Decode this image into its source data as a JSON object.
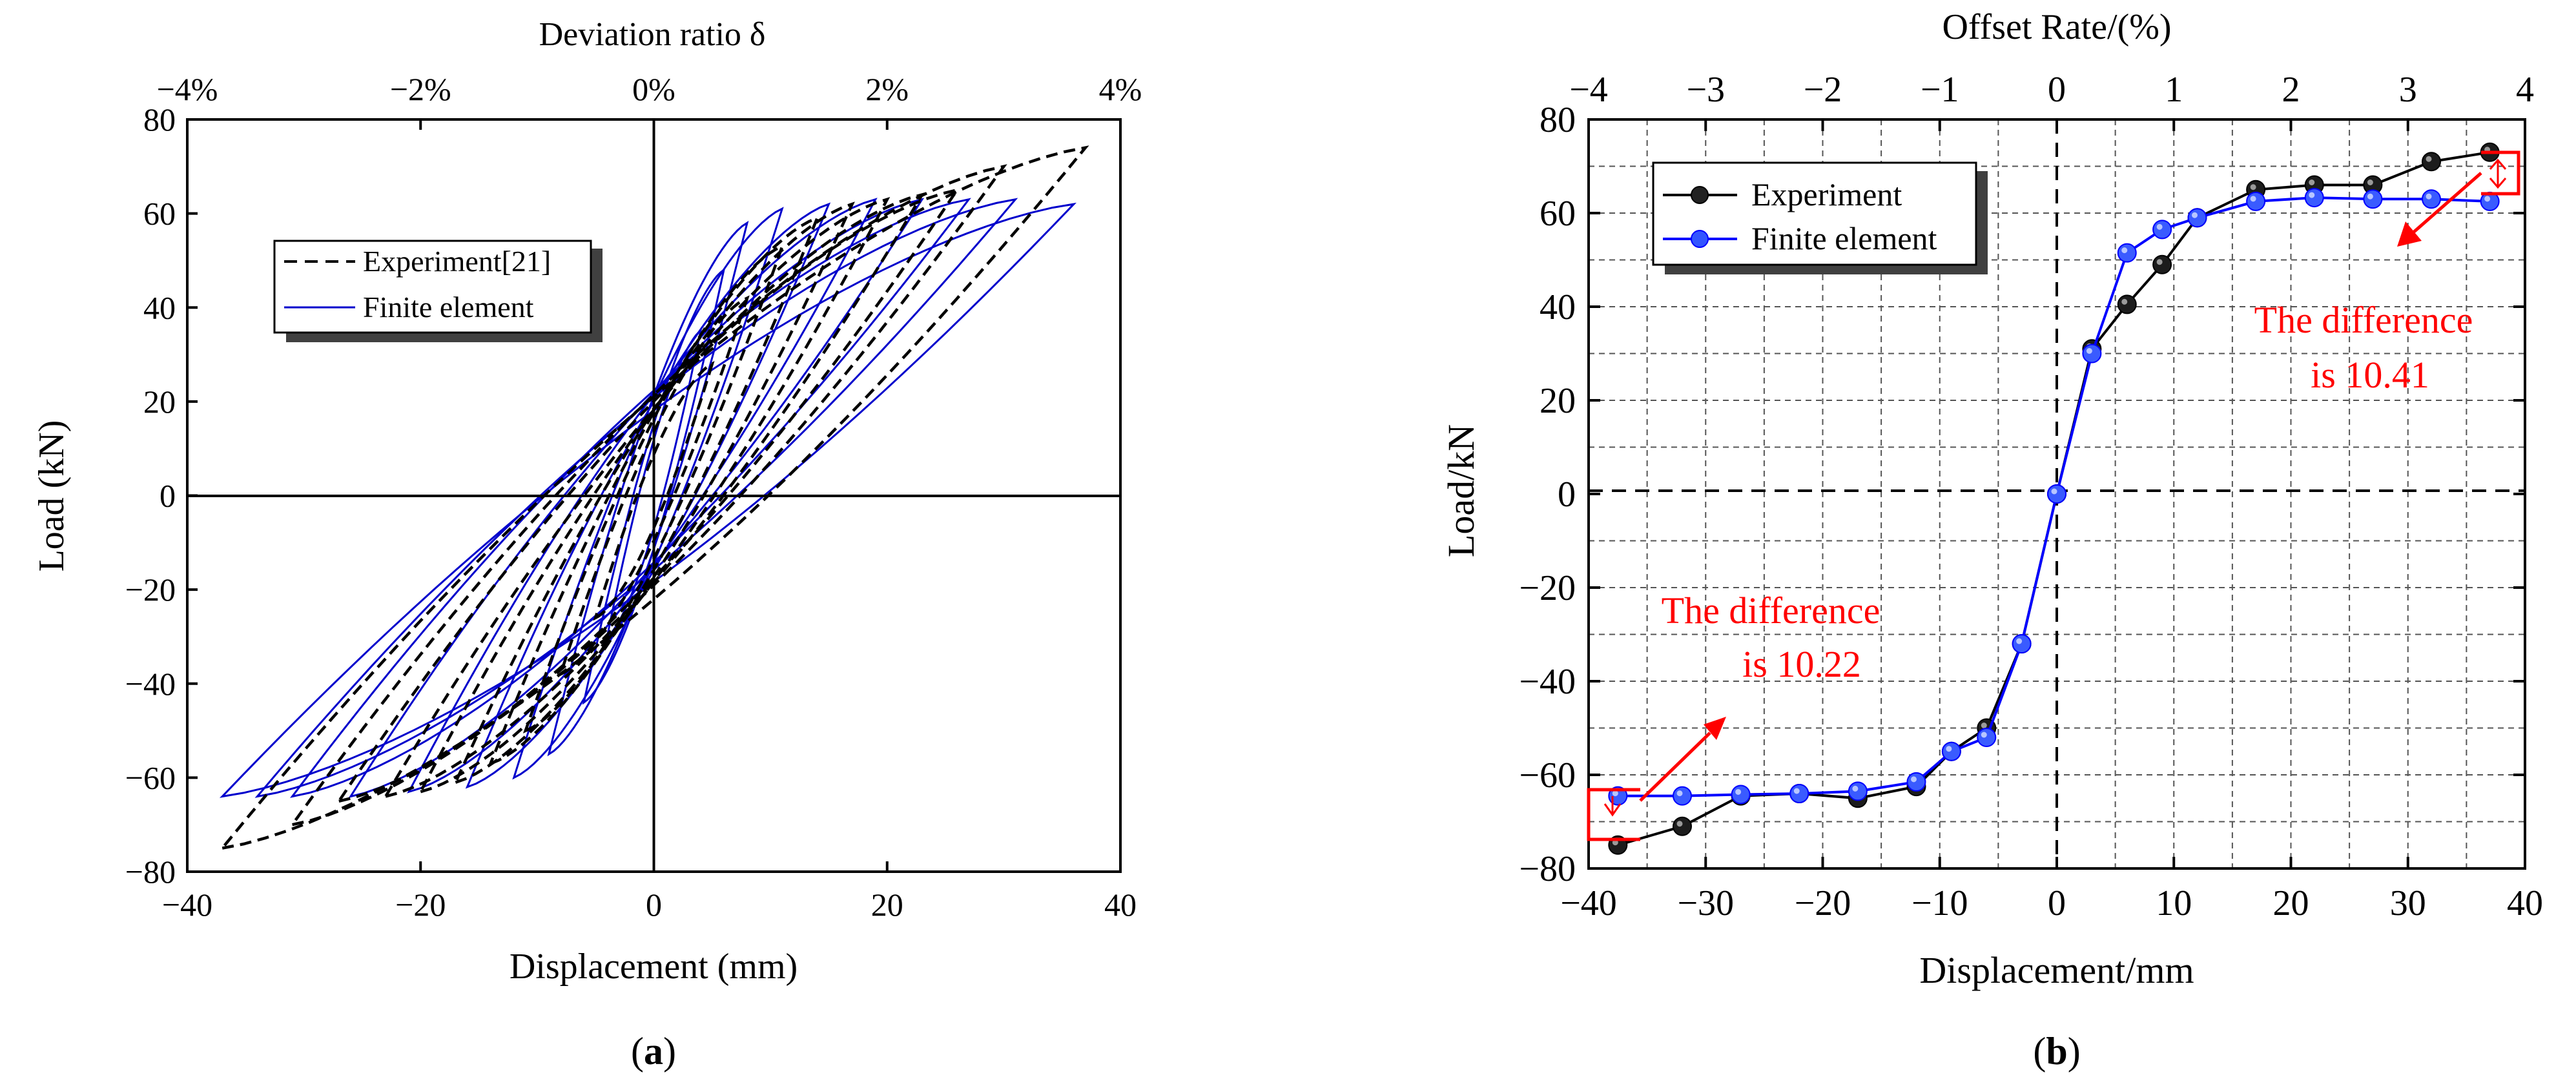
{
  "chart_data": [
    {
      "panel_label": "a",
      "type": "line",
      "title": "",
      "xlabel": "Displacement (mm)",
      "ylabel": "Load (kN)",
      "top_xlabel": "Deviation ratio δ",
      "xlim": [
        -40,
        40
      ],
      "ylim": [
        -80,
        80
      ],
      "xticks": [
        "−40",
        "−20",
        "0",
        "20",
        "40"
      ],
      "xtick_values": [
        -40,
        -20,
        0,
        20,
        40
      ],
      "yticks": [
        "−80",
        "−60",
        "−40",
        "−20",
        "0",
        "20",
        "40",
        "60",
        "80"
      ],
      "ytick_values": [
        -80,
        -60,
        -40,
        -20,
        0,
        20,
        40,
        60,
        80
      ],
      "top_xticks": [
        "−4%",
        "−2%",
        "0%",
        "2%",
        "4%"
      ],
      "grid": false,
      "legend": [
        {
          "label": "Experiment[21]",
          "style": "dashed",
          "color": "#000000"
        },
        {
          "label": "Finite element",
          "style": "solid",
          "color": "#0000cc"
        }
      ],
      "legend_position": "upper-left",
      "series": [
        {
          "name": "Experiment[21]",
          "color": "#000000",
          "loops": [
            {
              "dmax": 5,
              "pmax": 28,
              "dmin": -5,
              "pmin": -26
            },
            {
              "dmax": 8,
              "pmax": 42,
              "dmin": -8,
              "pmin": -38
            },
            {
              "dmax": 11,
              "pmax": 53,
              "dmin": -11,
              "pmin": -50
            },
            {
              "dmax": 14,
              "pmax": 59,
              "dmin": -14,
              "pmin": -57
            },
            {
              "dmax": 17,
              "pmax": 62,
              "dmin": -17,
              "pmin": -61
            },
            {
              "dmax": 20,
              "pmax": 63,
              "dmin": -20,
              "pmin": -63
            },
            {
              "dmax": 23,
              "pmax": 64,
              "dmin": -23,
              "pmin": -64
            },
            {
              "dmax": 26,
              "pmax": 65,
              "dmin": -27,
              "pmin": -65
            },
            {
              "dmax": 30,
              "pmax": 70,
              "dmin": -31,
              "pmin": -70
            },
            {
              "dmax": 37,
              "pmax": 74,
              "dmin": -37,
              "pmin": -75
            }
          ]
        },
        {
          "name": "Finite element",
          "color": "#0000cc",
          "loops": [
            {
              "dmax": 4,
              "pmax": 35,
              "dmin": -4,
              "pmin": -30
            },
            {
              "dmax": 6,
              "pmax": 48,
              "dmin": -6,
              "pmin": -44
            },
            {
              "dmax": 8,
              "pmax": 58,
              "dmin": -9,
              "pmin": -55
            },
            {
              "dmax": 11,
              "pmax": 61,
              "dmin": -12,
              "pmin": -60
            },
            {
              "dmax": 15,
              "pmax": 62,
              "dmin": -16,
              "pmin": -62
            },
            {
              "dmax": 19,
              "pmax": 63,
              "dmin": -21,
              "pmin": -63
            },
            {
              "dmax": 23,
              "pmax": 63,
              "dmin": -26,
              "pmin": -64
            },
            {
              "dmax": 27,
              "pmax": 63,
              "dmin": -31,
              "pmin": -64
            },
            {
              "dmax": 31,
              "pmax": 63,
              "dmin": -34,
              "pmin": -64
            },
            {
              "dmax": 36,
              "pmax": 62,
              "dmin": -37,
              "pmin": -64
            }
          ]
        }
      ]
    },
    {
      "panel_label": "b",
      "type": "line",
      "title": "",
      "xlabel": "Displacement/mm",
      "ylabel": "Load/kN",
      "top_xlabel": "Offset Rate/(%)",
      "xlim": [
        -40,
        40
      ],
      "ylim": [
        -80,
        80
      ],
      "xticks": [
        "−40",
        "−30",
        "−20",
        "−10",
        "0",
        "10",
        "20",
        "30",
        "40"
      ],
      "xtick_values": [
        -40,
        -30,
        -20,
        -10,
        0,
        10,
        20,
        30,
        40
      ],
      "yticks": [
        "−80",
        "−60",
        "−40",
        "−20",
        "0",
        "20",
        "40",
        "60",
        "80"
      ],
      "ytick_values": [
        -80,
        -60,
        -40,
        -20,
        0,
        20,
        40,
        60,
        80
      ],
      "top_xticks": [
        "−4",
        "−3",
        "−2",
        "−1",
        "0",
        "1",
        "2",
        "3",
        "4"
      ],
      "grid": true,
      "legend_position": "upper-left",
      "series": [
        {
          "name": "Experiment",
          "color": "#000000",
          "points": [
            [
              -37.5,
              -75
            ],
            [
              -32,
              -71
            ],
            [
              -27,
              -64.5
            ],
            [
              -22,
              -64
            ],
            [
              -17,
              -65
            ],
            [
              -12,
              -62.5
            ],
            [
              -9,
              -55
            ],
            [
              -6,
              -50
            ],
            [
              -3,
              -32
            ],
            [
              0,
              0
            ],
            [
              3,
              31
            ],
            [
              6,
              40.5
            ],
            [
              9,
              49
            ],
            [
              12,
              59
            ],
            [
              17,
              65
            ],
            [
              22,
              66
            ],
            [
              27,
              66
            ],
            [
              32,
              71
            ],
            [
              37,
              73
            ]
          ]
        },
        {
          "name": "Finite element",
          "color": "#0000ff",
          "points": [
            [
              -37.5,
              -64.5
            ],
            [
              -32,
              -64.5
            ],
            [
              -27,
              -64.2
            ],
            [
              -22,
              -64
            ],
            [
              -17,
              -63.5
            ],
            [
              -12,
              -61.5
            ],
            [
              -9,
              -55
            ],
            [
              -6,
              -52
            ],
            [
              -3,
              -32
            ],
            [
              0,
              0
            ],
            [
              3,
              30
            ],
            [
              6,
              51.5
            ],
            [
              9,
              56.5
            ],
            [
              12,
              59
            ],
            [
              17,
              62.5
            ],
            [
              22,
              63.3
            ],
            [
              27,
              63
            ],
            [
              32,
              63
            ],
            [
              37,
              62.5
            ]
          ]
        }
      ],
      "annotations": [
        {
          "text_line1": "The difference",
          "text_line2": "is 10.41",
          "color": "#ff0000",
          "near": [
            33.5,
            72.5
          ]
        },
        {
          "text_line1": "The difference",
          "text_line2": "is 10.22",
          "color": "#ff0000",
          "near": [
            -38.5,
            -65
          ]
        }
      ]
    }
  ],
  "panel_labels": [
    "(a)",
    "(b)"
  ]
}
